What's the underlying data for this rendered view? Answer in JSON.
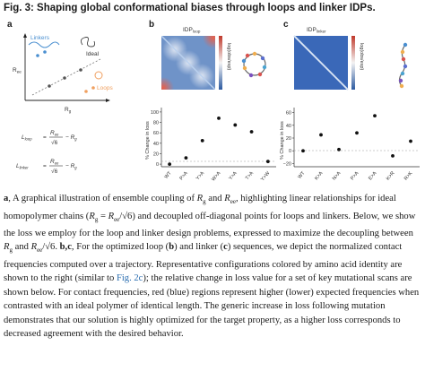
{
  "figure": {
    "title": "Fig. 3: Shaping global conformational biases through loops and linker IDPs."
  },
  "panel_a": {
    "letter": "a",
    "y_label": "R",
    "y_sub": "ee",
    "x_label": "R",
    "x_sub": "g",
    "legend_linkers": "Linkers",
    "legend_ideal": "Ideal",
    "legend_loops": "Loops",
    "eq_loop_lhs": "L",
    "eq_loop_sub": "loop",
    "eq_linker_lhs": "L",
    "eq_linker_sub": "linker",
    "eq_num": "R",
    "eq_num_sub": "ee",
    "eq_den": "√6",
    "eq_minus": "− R",
    "eq_minus_sub": "g",
    "eq_equals": "=",
    "colors": {
      "linkers": "#4a8fd0",
      "ideal": "#555555",
      "loops": "#f0a060"
    }
  },
  "panel_b": {
    "letter": "b",
    "map_title": "IDP",
    "map_title_sub": "loop",
    "colorbar_label": "log(obs/exp)",
    "ylabel": "% Change in loss",
    "yticks": [
      "0",
      "20",
      "40",
      "60",
      "80",
      "100"
    ],
    "categories": [
      "WT",
      "P>A",
      "Y>A",
      "W>A",
      "Y>A",
      "T>A",
      "Y>W"
    ]
  },
  "panel_c": {
    "letter": "c",
    "map_title": "IDP",
    "map_title_sub": "linker",
    "colorbar_label": "log(obs/exp)",
    "ylabel": "% Change in loss",
    "yticks": [
      "−20",
      "0",
      "20",
      "40",
      "60"
    ],
    "categories": [
      "WT",
      "K>A",
      "N>A",
      "P>A",
      "E>A",
      "K>R",
      "R>K"
    ]
  },
  "chart_data": [
    {
      "type": "scatter",
      "categories": [
        "WT",
        "P>A",
        "Y>A",
        "W>A",
        "Y>A",
        "T>A",
        "Y>W"
      ],
      "values": [
        0,
        12,
        45,
        88,
        75,
        62,
        5
      ],
      "ylabel": "% Change in loss",
      "ylim": [
        -5,
        105
      ],
      "grid": false
    },
    {
      "type": "scatter",
      "categories": [
        "WT",
        "K>A",
        "N>A",
        "P>A",
        "E>A",
        "K>R",
        "R>K"
      ],
      "values": [
        0,
        25,
        2,
        28,
        55,
        -8,
        15
      ],
      "ylabel": "% Change in loss",
      "ylim": [
        -25,
        65
      ],
      "grid": false
    }
  ],
  "caption": {
    "a_letter": "a",
    "p1": ", A graphical illustration of ensemble coupling of ",
    "rg1": "R",
    "rg1_sub": "g",
    "p2": " and ",
    "ree1": "R",
    "ree1_sub": "ee",
    "p3": ", highlighting linear relationships for ideal homopolymer chains (",
    "formula": "R",
    "formula_sub": "g",
    "formula_eq": " = ",
    "formula_rhs": "R",
    "formula_rhs_sub": "ee",
    "formula_div": "/√6",
    "p4": ") and decoupled off-diagonal points for loops and linkers. Below, we show the loss we employ for the loop and linker design problems, expressed to maximize the decoupling between ",
    "rg2": "R",
    "rg2_sub": "g",
    "p5": " and ",
    "ree2": "R",
    "ree2_sub": "ee",
    "p6": "/√6.",
    "bc_letter": "b",
    "bc_comma": ",",
    "c_letter": "c",
    "p7": ", For the optimized loop (",
    "b_ref": "b",
    "p8": ") and linker (",
    "c_ref": "c",
    "p9": ") sequences, we depict the normalized contact frequencies computed over a trajectory. Representative configurations colored by amino acid identity are shown to the right (similar to ",
    "fig_ref": "Fig. 2c",
    "p10": "); the relative change in loss value for a set of key mutational scans are shown below. For contact frequencies, red (blue) regions represent higher (lower) expected frequencies when contrasted with an ideal polymer of identical length. The generic increase in loss following mutation demonstrates that our solution is highly optimized for the target property, as a higher loss corresponds to decreased agreement with the desired behavior."
  }
}
